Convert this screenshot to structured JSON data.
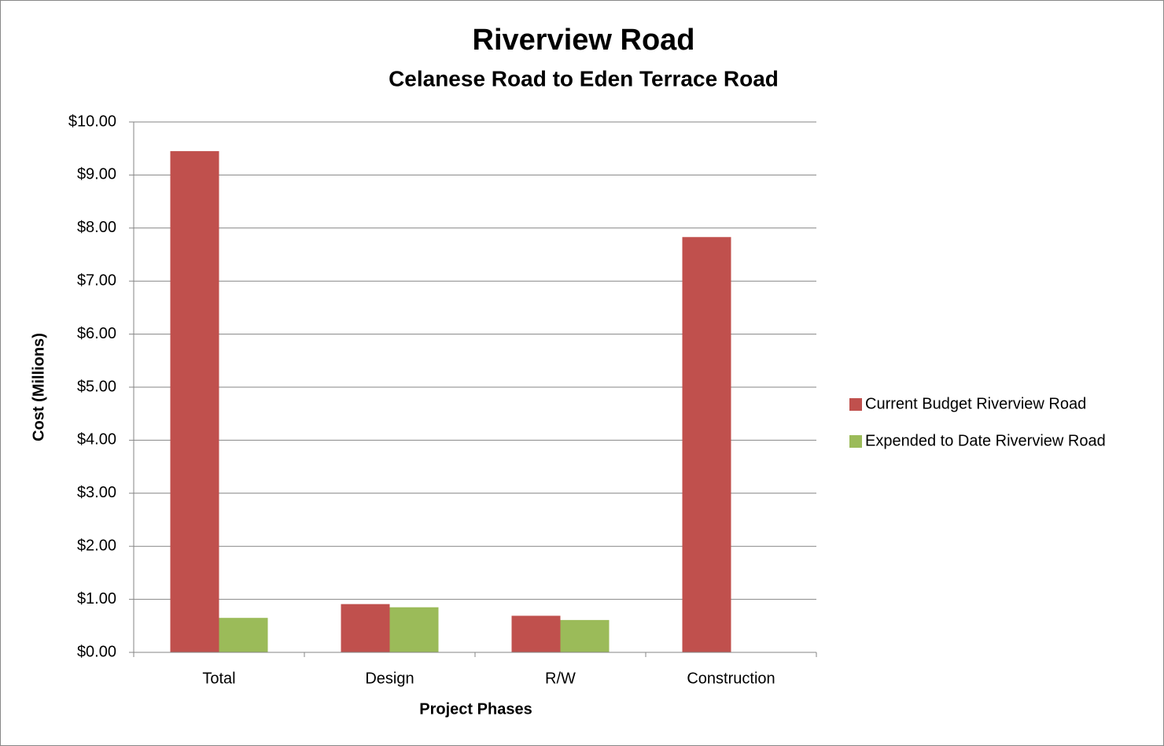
{
  "chart_data": {
    "type": "bar",
    "title": "Riverview Road",
    "subtitle": "Celanese Road to Eden Terrace Road",
    "x_label": "Project Phases",
    "y_label": "Cost (Millions)",
    "categories": [
      "Total",
      "Design",
      "R/W",
      "Construction"
    ],
    "series": [
      {
        "name": "Current Budget Riverview Road",
        "color": "#c0504d",
        "values": [
          9.45,
          0.91,
          0.69,
          7.83
        ]
      },
      {
        "name": "Expended to Date Riverview Road",
        "color": "#9bbb59",
        "values": [
          0.65,
          0.85,
          0.61,
          0
        ]
      }
    ],
    "ylim": [
      0,
      10
    ],
    "yticks": [
      {
        "value": 0,
        "label": "$0.00"
      },
      {
        "value": 1,
        "label": "$1.00"
      },
      {
        "value": 2,
        "label": "$2.00"
      },
      {
        "value": 3,
        "label": "$3.00"
      },
      {
        "value": 4,
        "label": "$4.00"
      },
      {
        "value": 5,
        "label": "$5.00"
      },
      {
        "value": 6,
        "label": "$6.00"
      },
      {
        "value": 7,
        "label": "$7.00"
      },
      {
        "value": 8,
        "label": "$8.00"
      },
      {
        "value": 9,
        "label": "$9.00"
      },
      {
        "value": 10,
        "label": "$10.00"
      }
    ],
    "grid": true,
    "legend": "right"
  }
}
